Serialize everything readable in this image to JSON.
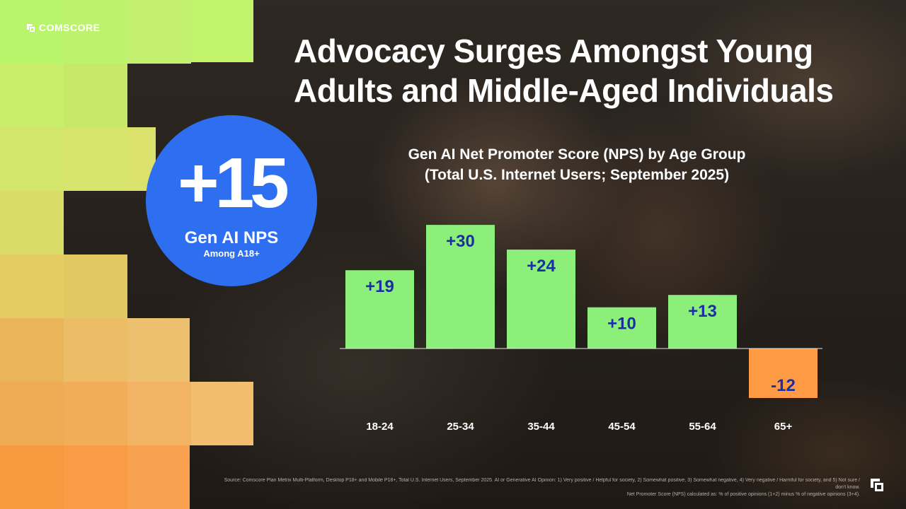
{
  "brand": {
    "name": "COMSCORE"
  },
  "title": "Advocacy Surges Amongst Young Adults and Middle-Aged Individuals",
  "kpi": {
    "value": "+15",
    "label": "Gen AI NPS",
    "sublabel": "Among A18+"
  },
  "chart_data": {
    "type": "bar",
    "title": "Gen AI Net Promoter Score (NPS) by Age Group",
    "subtitle": "(Total U.S. Internet Users; September 2025)",
    "categories": [
      "18-24",
      "25-34",
      "35-44",
      "45-54",
      "55-64",
      "65+"
    ],
    "values": [
      19,
      30,
      24,
      10,
      13,
      -12
    ],
    "data_labels": [
      "+19",
      "+30",
      "+24",
      "+10",
      "+13",
      "-12"
    ],
    "xlabel": "",
    "ylabel": "",
    "ylim": [
      -12,
      30
    ],
    "grid": false,
    "colors": {
      "positive": "#8bef7a",
      "negative": "#ff9a45",
      "label": "#1a2fa0",
      "tick": "#ffffff"
    }
  },
  "footnote": {
    "source": "Source: Comscore Plan Metrix Multi-Platform, Desktop P18+ and Mobile P18+, Total U.S. Internet Users, September 2025. AI or Generative AI Opinion: 1) Very positive / Helpful for society, 2) Somewhat positive, 3) Somewhat negative, 4) Very negative / Harmful for society, and 5) Not sure / don't know.",
    "method": "Net Promoter Score (NPS) calculated as: % of positive opinions (1+2) minus % of negative opinions (3+4)."
  }
}
